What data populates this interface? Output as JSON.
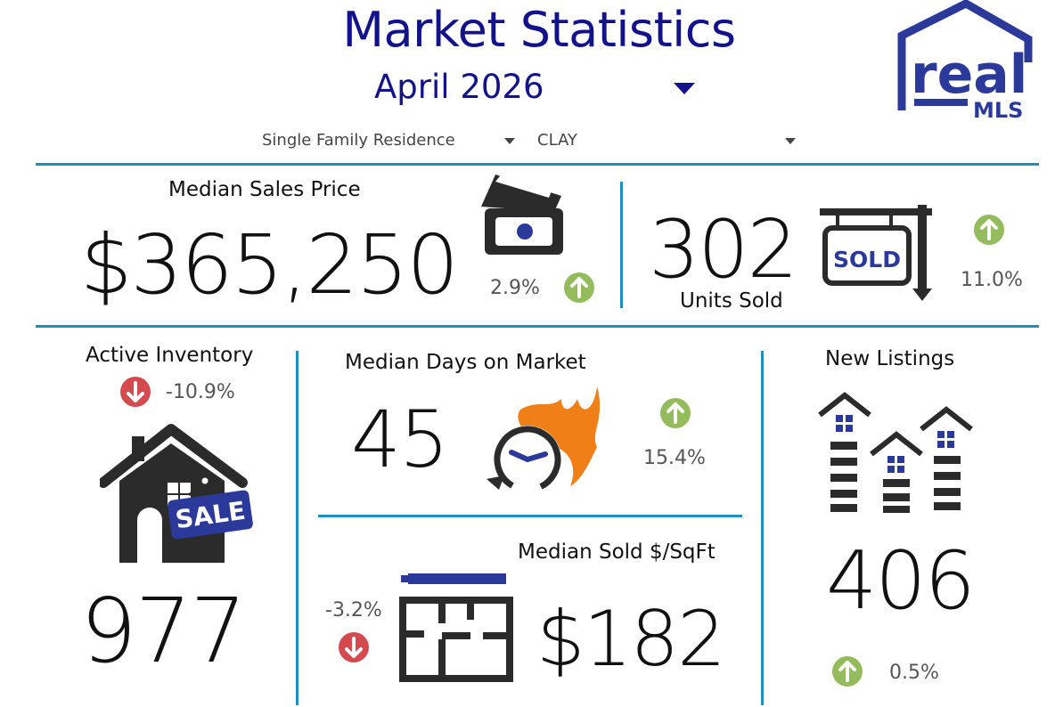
{
  "header": {
    "title": "Market Statistics",
    "month": "April 2026",
    "filters": [
      {
        "value": "Single Family Residence"
      },
      {
        "value": "CLAY"
      }
    ],
    "logo": {
      "word": "real",
      "sub": "MLS",
      "color": "#2b3a9a"
    }
  },
  "colors": {
    "accent": "#1e8fbe",
    "title": "#12128a",
    "up": "#94bc5c",
    "down": "#d44a4f",
    "flame": "#f07f18",
    "icon_blue": "#2b3a9a"
  },
  "median_sales_price": {
    "label": "Median Sales Price",
    "value": "$365,250",
    "change": "2.9%",
    "direction": "up",
    "icon": "money-icon"
  },
  "units_sold": {
    "label": "Units Sold",
    "value": "302",
    "change": "11.0%",
    "direction": "up",
    "icon": "sold-sign-icon",
    "sign_text": "SOLD"
  },
  "active_inventory": {
    "label": "Active Inventory",
    "value": "977",
    "change": "-10.9%",
    "direction": "down",
    "icon": "house-sale-icon",
    "sign_text": "SALE"
  },
  "median_days_on_market": {
    "label": "Median Days on Market",
    "value": "45",
    "change": "15.4%",
    "direction": "up",
    "icon": "fire-clock-icon"
  },
  "median_sold_sqft": {
    "label": "Median Sold $/SqFt",
    "value": "$182",
    "change": "-3.2%",
    "direction": "down",
    "icon": "floorplan-icon"
  },
  "new_listings": {
    "label": "New Listings",
    "value": "406",
    "change": "0.5%",
    "direction": "up",
    "icon": "houses-icon"
  }
}
